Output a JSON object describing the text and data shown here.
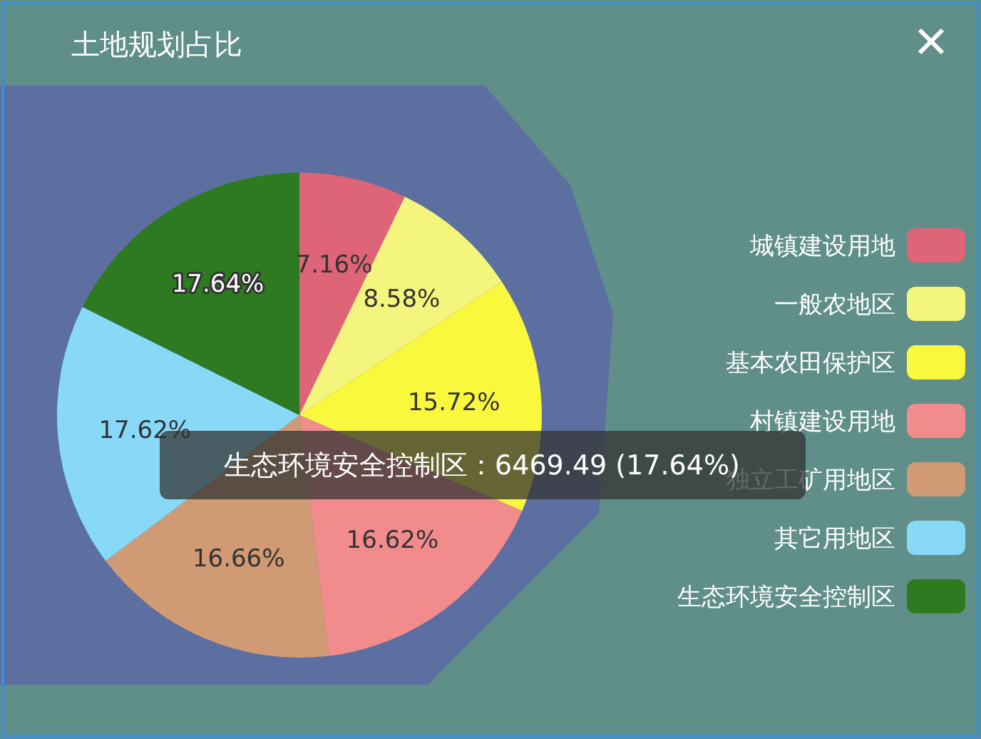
{
  "chart_data": {
    "type": "pie",
    "title": "土地规划占比",
    "categories": [
      "城镇建设用地",
      "一般农地区",
      "基本农田保护区",
      "村镇建设用地",
      "独立工矿用地区",
      "其它用地区",
      "生态环境安全控制区"
    ],
    "values": [
      7.16,
      8.58,
      15.72,
      16.62,
      16.66,
      17.62,
      17.64
    ],
    "value_labels": [
      "7.16%",
      "8.58%",
      "15.72%",
      "16.62%",
      "16.66%",
      "17.62%",
      "17.64%"
    ],
    "colors": [
      "#de6478",
      "#f4f57c",
      "#f9f83c",
      "#f18b8c",
      "#cf9a74",
      "#88d9f8",
      "#2d7a21"
    ],
    "legend": "right",
    "annotations": [
      "生态环境安全控制区：6469.49 (17.64%)"
    ]
  }
}
